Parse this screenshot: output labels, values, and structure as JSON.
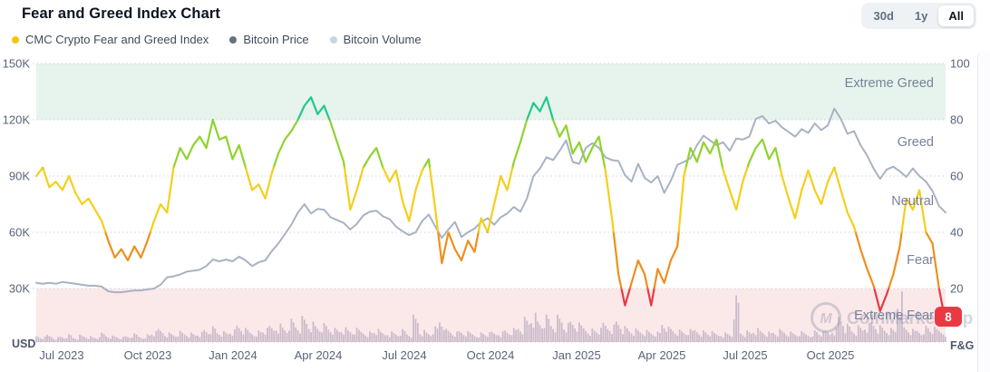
{
  "header": {
    "title": "Fear and Greed Index Chart",
    "range_buttons": [
      {
        "label": "30d",
        "active": false
      },
      {
        "label": "1y",
        "active": false
      },
      {
        "label": "All",
        "active": true
      }
    ],
    "legend": [
      {
        "label": "CMC Crypto Fear and Greed Index",
        "color": "#f5c50c"
      },
      {
        "label": "Bitcoin Price",
        "color": "#69707f"
      },
      {
        "label": "Bitcoin Volume",
        "color": "#ccd3de"
      }
    ]
  },
  "chart_data": {
    "type": "line",
    "title": "Fear and Greed Index Chart",
    "x_ticks": [
      "Jul 2023",
      "Oct 2023",
      "Jan 2024",
      "Apr 2024",
      "Jul 2024",
      "Oct 2024",
      "Jan 2025",
      "Apr 2025",
      "Jul 2025",
      "Oct 2025"
    ],
    "left_axis": {
      "label": "USD",
      "ticks": [
        "150K",
        "120K",
        "90K",
        "60K",
        "30K"
      ],
      "tick_values": [
        150,
        120,
        90,
        60,
        30
      ],
      "range": [
        0,
        150
      ]
    },
    "right_axis": {
      "label": "F&G",
      "ticks": [
        "100",
        "80",
        "60",
        "40",
        "20"
      ],
      "tick_values": [
        100,
        80,
        60,
        40,
        20
      ],
      "range": [
        0,
        100
      ]
    },
    "grid": true,
    "legend_position": "top-left",
    "zones": [
      {
        "label": "Extreme Greed",
        "range": [
          80,
          100
        ],
        "band_color": "#e6f4ed"
      },
      {
        "label": "Greed",
        "range": [
          60,
          80
        ],
        "band_color": null
      },
      {
        "label": "Neutral",
        "range": [
          40,
          60
        ],
        "band_color": null
      },
      {
        "label": "Fear",
        "range": [
          20,
          40
        ],
        "band_color": null
      },
      {
        "label": "Extreme Fear",
        "range": [
          0,
          20
        ],
        "band_color": "#fbe9ea"
      }
    ],
    "current_fg_value": "8",
    "badge_color": "#ea3943",
    "fg_color_scale": [
      {
        "min": 80,
        "color": "#23c78f"
      },
      {
        "min": 63,
        "color": "#8ed32e"
      },
      {
        "min": 40,
        "color": "#f4cf1b"
      },
      {
        "min": 20,
        "color": "#ef8f1c"
      },
      {
        "min": 0,
        "color": "#ea3943"
      }
    ],
    "watermark": "CoinMarketCap",
    "series": [
      {
        "name": "CMC Crypto Fear and Greed Index",
        "axis": "right",
        "values": [
          60,
          63,
          56,
          58,
          55,
          60,
          54,
          50,
          52,
          48,
          44,
          37,
          31,
          34,
          30,
          35,
          31,
          37,
          44,
          50,
          47,
          63,
          70,
          66,
          71,
          74,
          70,
          80,
          73,
          74,
          66,
          71,
          63,
          55,
          57,
          52,
          61,
          68,
          73,
          76,
          80,
          85,
          88,
          82,
          85,
          79,
          72,
          65,
          48,
          55,
          63,
          67,
          70,
          63,
          58,
          62,
          51,
          44,
          55,
          62,
          66,
          48,
          29,
          40,
          34,
          30,
          37,
          33,
          45,
          40,
          50,
          60,
          55,
          65,
          72,
          80,
          86,
          83,
          88,
          80,
          74,
          78,
          68,
          72,
          65,
          70,
          74,
          62,
          45,
          25,
          14,
          22,
          30,
          25,
          14,
          27,
          22,
          30,
          35,
          60,
          70,
          65,
          72,
          68,
          73,
          62,
          55,
          48,
          58,
          65,
          70,
          73,
          66,
          70,
          60,
          52,
          45,
          55,
          62,
          55,
          50,
          58,
          63,
          55,
          47,
          42,
          34,
          27,
          21,
          12,
          18,
          25,
          35,
          52,
          48,
          55,
          40,
          36,
          20,
          8
        ]
      },
      {
        "name": "Bitcoin Price",
        "axis": "left",
        "color": "#a9b2c3",
        "values": [
          33,
          32.5,
          33,
          32.5,
          33.5,
          33,
          32.5,
          32,
          31.5,
          31.5,
          31,
          28.5,
          28,
          28,
          28.5,
          29,
          29,
          29.5,
          30,
          32,
          36,
          36.5,
          37.5,
          39,
          39.5,
          40,
          42,
          45.5,
          44.5,
          45.5,
          44.5,
          47,
          45,
          42,
          44,
          45,
          50,
          54,
          59,
          64,
          70.5,
          75,
          70,
          72.5,
          72,
          68,
          66.5,
          65,
          61.5,
          64.5,
          69,
          71,
          71.5,
          68.5,
          67,
          63,
          60.5,
          58.5,
          60,
          66,
          69.5,
          63,
          57,
          61.5,
          65.5,
          57.5,
          60,
          62,
          65.5,
          67.5,
          64,
          68,
          70,
          73.5,
          71,
          78,
          90,
          94,
          100,
          98.5,
          103.5,
          109,
          97.5,
          96.5,
          105,
          107.5,
          105,
          100,
          98.5,
          98,
          90.5,
          87,
          96.5,
          89,
          86.5,
          90,
          81,
          87.5,
          96,
          97.5,
          99.5,
          106.5,
          111.5,
          109,
          106.5,
          108,
          103.5,
          110,
          109.5,
          111,
          120.5,
          122,
          118,
          119.5,
          116,
          113.5,
          111,
          115,
          113,
          118,
          114.5,
          117,
          126,
          120.5,
          112.5,
          114,
          106.5,
          101,
          94,
          88.5,
          93.5,
          95,
          92.5,
          89.5,
          94,
          90,
          87,
          82,
          74,
          70.5
        ]
      },
      {
        "name": "Bitcoin Volume",
        "axis": "volume",
        "color": "rgba(136,127,163,0.42)",
        "values": [
          6,
          5,
          7,
          5,
          6,
          8,
          5,
          7,
          6,
          5,
          9,
          7,
          6,
          5,
          6,
          8,
          6,
          8,
          10,
          13,
          10,
          9,
          11,
          10,
          9,
          10,
          13,
          15,
          11,
          10,
          12,
          17,
          13,
          11,
          12,
          13,
          16,
          19,
          16,
          23,
          19,
          25,
          20,
          17,
          18,
          15,
          13,
          14,
          12,
          13,
          12,
          11,
          12,
          10,
          11,
          10,
          13,
          10,
          26,
          12,
          10,
          15,
          24,
          12,
          10,
          11,
          10,
          9,
          10,
          9,
          10,
          11,
          13,
          14,
          17,
          24,
          29,
          22,
          26,
          20,
          25,
          18,
          21,
          18,
          16,
          14,
          13,
          19,
          18,
          23,
          16,
          14,
          13,
          12,
          11,
          10,
          21,
          14,
          12,
          11,
          12,
          14,
          12,
          10,
          9,
          10,
          9,
          46,
          11,
          11,
          14,
          12,
          10,
          11,
          12,
          10,
          9,
          10,
          9,
          12,
          10,
          11,
          15,
          28,
          18,
          14,
          16,
          19,
          21,
          16,
          14,
          13,
          48,
          15,
          12,
          13,
          17,
          14,
          13,
          12
        ]
      }
    ],
    "style": {
      "grid_color": "#cfd4de",
      "tick_color": "#5a6478",
      "axis_title_color": "#4f586c",
      "zone_label_color": "#78829a",
      "watermark_color": "#8b94a9"
    }
  }
}
